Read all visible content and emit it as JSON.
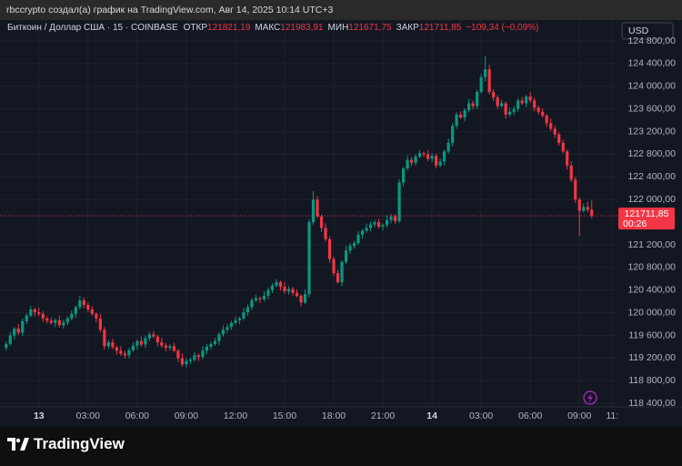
{
  "header": {
    "caption": "rbccrypto создал(а) график на TradingView.com, Авг 14, 2025 10:14 UTC+3"
  },
  "footer": {
    "logo": "TradingView"
  },
  "chart_data": {
    "type": "candlestick",
    "title": "Биткоин / Доллар США · 15 · COINBASE",
    "legend": [
      {
        "label": "ОТКР",
        "value": "121821,19"
      },
      {
        "label": "МАКС",
        "value": "121983,91"
      },
      {
        "label": "МИН",
        "value": "121671,75"
      },
      {
        "label": "ЗАКР",
        "value": "121711,85"
      }
    ],
    "change": "−109,34 (−0,09%)",
    "currency": "USD",
    "price_label": "121711,85",
    "countdown": "00:26",
    "up_color": "#089981",
    "down_color": "#f23645",
    "grid": true,
    "xlim": [
      -1.5,
      149.5
    ],
    "xticks": [
      {
        "value": 8,
        "label": "13"
      },
      {
        "value": 20,
        "label": "03:00"
      },
      {
        "value": 32,
        "label": "06:00"
      },
      {
        "value": 44,
        "label": "09:00"
      },
      {
        "value": 56,
        "label": "12:00"
      },
      {
        "value": 68,
        "label": "15:00"
      },
      {
        "value": 80,
        "label": "18:00"
      },
      {
        "value": 92,
        "label": "21:00"
      },
      {
        "value": 104,
        "label": "14"
      },
      {
        "value": 116,
        "label": "03:00"
      },
      {
        "value": 128,
        "label": "06:00"
      },
      {
        "value": 140,
        "label": "09:00"
      },
      {
        "value": 148,
        "label": "11:"
      }
    ],
    "ylim": [
      118050,
      125170
    ],
    "yticks": [
      {
        "value": 124800,
        "label": "124 800,00"
      },
      {
        "value": 124400,
        "label": "124 400,00"
      },
      {
        "value": 124000,
        "label": "124 000,00"
      },
      {
        "value": 123600,
        "label": "123 600,00"
      },
      {
        "value": 123200,
        "label": "123 200,00"
      },
      {
        "value": 122800,
        "label": "122 800,00"
      },
      {
        "value": 122400,
        "label": "122 400,00"
      },
      {
        "value": 122000,
        "label": "122 000,00"
      },
      {
        "value": 121200,
        "label": "121 200,00"
      },
      {
        "value": 120800,
        "label": "120 800,00"
      },
      {
        "value": 120400,
        "label": "120 400,00"
      },
      {
        "value": 120000,
        "label": "120 000,00"
      },
      {
        "value": 119600,
        "label": "119 600,00"
      },
      {
        "value": 119200,
        "label": "119 200,00"
      },
      {
        "value": 118800,
        "label": "118 800,00"
      },
      {
        "value": 118400,
        "label": "118 400,00"
      }
    ],
    "open": [
      119380,
      119450,
      119600,
      119720,
      119650,
      119850,
      119950,
      120060,
      120010,
      119980,
      119900,
      119860,
      119820,
      119870,
      119780,
      119830,
      119900,
      119980,
      120100,
      120220,
      120140,
      120060,
      119980,
      119900,
      119700,
      119410,
      119480,
      119390,
      119330,
      119280,
      119250,
      119340,
      119420,
      119500,
      119440,
      119550,
      119620,
      119580,
      119480,
      119420,
      119380,
      119410,
      119330,
      119200,
      119090,
      119150,
      119170,
      119250,
      119220,
      119330,
      119400,
      119450,
      119500,
      119620,
      119700,
      119750,
      119820,
      119870,
      119900,
      120010,
      120100,
      120220,
      120260,
      120240,
      120300,
      120400,
      120480,
      120540,
      120460,
      120380,
      120420,
      120350,
      120300,
      120180,
      120330,
      121600,
      122000,
      121700,
      121500,
      121300,
      120950,
      120700,
      120540,
      120900,
      121100,
      121180,
      121230,
      121380,
      121450,
      121500,
      121560,
      121600,
      121520,
      121550,
      121640,
      121700,
      121620,
      122300,
      122550,
      122700,
      122650,
      122760,
      122820,
      122800,
      122720,
      122770,
      122600,
      122670,
      122850,
      123000,
      123300,
      123500,
      123450,
      123580,
      123700,
      123650,
      123900,
      124160,
      124300,
      123900,
      123800,
      123650,
      123700,
      123500,
      123550,
      123600,
      123750,
      123700,
      123820,
      123750,
      123620,
      123550,
      123480,
      123350,
      123250,
      123150,
      123000,
      122850,
      122600,
      122350,
      122000,
      121800,
      121870,
      121821.19
    ],
    "high": [
      119490,
      119660,
      119750,
      119800,
      119900,
      119990,
      120120,
      120090,
      120090,
      120030,
      119940,
      119920,
      119900,
      119950,
      119880,
      119940,
      120040,
      120130,
      120300,
      120270,
      120180,
      120120,
      120010,
      119980,
      119750,
      119520,
      119540,
      119420,
      119410,
      119330,
      119380,
      119480,
      119530,
      119580,
      119600,
      119660,
      119680,
      119610,
      119560,
      119470,
      119450,
      119470,
      119360,
      119280,
      119200,
      119210,
      119310,
      119280,
      119410,
      119450,
      119490,
      119560,
      119650,
      119780,
      119800,
      119860,
      119930,
      119930,
      120090,
      120150,
      120260,
      120320,
      120290,
      120380,
      120450,
      120520,
      120600,
      120570,
      120540,
      120470,
      120460,
      120410,
      120330,
      120410,
      121650,
      122150,
      122060,
      121730,
      121580,
      121350,
      120990,
      120760,
      120930,
      121180,
      121230,
      121270,
      121440,
      121480,
      121580,
      121610,
      121640,
      121660,
      121580,
      121720,
      121750,
      121740,
      122360,
      122580,
      122780,
      122750,
      122800,
      122880,
      122850,
      122880,
      122820,
      122810,
      122730,
      122880,
      123080,
      123350,
      123540,
      123560,
      123610,
      123780,
      123750,
      123940,
      124220,
      124530,
      124380,
      123950,
      123840,
      123760,
      123730,
      123630,
      123650,
      123790,
      123810,
      123850,
      123900,
      123800,
      123660,
      123610,
      123510,
      123430,
      123300,
      123190,
      123060,
      122880,
      122680,
      122400,
      122040,
      121930,
      121960,
      121983.91
    ],
    "low": [
      119330,
      119420,
      119530,
      119610,
      119590,
      119800,
      119920,
      119940,
      119940,
      119840,
      119810,
      119790,
      119750,
      119740,
      119720,
      119780,
      119870,
      119910,
      120060,
      120080,
      120010,
      119950,
      119830,
      119660,
      119350,
      119360,
      119360,
      119260,
      119240,
      119190,
      119200,
      119310,
      119350,
      119400,
      119380,
      119500,
      119550,
      119410,
      119380,
      119320,
      119330,
      119300,
      119130,
      119050,
      119030,
      119100,
      119140,
      119150,
      119180,
      119270,
      119350,
      119420,
      119430,
      119580,
      119640,
      119700,
      119790,
      119800,
      119860,
      119950,
      120050,
      120190,
      120170,
      120200,
      120240,
      120350,
      120450,
      120390,
      120340,
      120320,
      120300,
      120270,
      120110,
      120150,
      120270,
      121550,
      121670,
      121430,
      121260,
      120890,
      120650,
      120510,
      120470,
      120860,
      121040,
      121130,
      121200,
      121310,
      121410,
      121440,
      121510,
      121490,
      121450,
      121510,
      121580,
      121570,
      121590,
      122230,
      122510,
      122590,
      122600,
      122730,
      122750,
      122680,
      122660,
      122550,
      122570,
      122600,
      122810,
      122940,
      123250,
      123420,
      123380,
      123540,
      123590,
      123600,
      123870,
      124090,
      123860,
      123740,
      123600,
      123620,
      123430,
      123460,
      123490,
      123550,
      123670,
      123630,
      123710,
      123560,
      123500,
      123450,
      123280,
      123210,
      123090,
      122950,
      122820,
      122530,
      122310,
      121940,
      121350,
      121770,
      121780,
      121671.75
    ],
    "close": [
      119450,
      119600,
      119720,
      119650,
      119850,
      119950,
      120060,
      120010,
      119980,
      119900,
      119860,
      119820,
      119870,
      119780,
      119830,
      119900,
      119980,
      120100,
      120220,
      120140,
      120060,
      119980,
      119900,
      119700,
      119410,
      119480,
      119390,
      119330,
      119280,
      119250,
      119340,
      119420,
      119500,
      119440,
      119550,
      119620,
      119580,
      119480,
      119420,
      119380,
      119410,
      119330,
      119200,
      119090,
      119150,
      119170,
      119250,
      119220,
      119330,
      119400,
      119450,
      119500,
      119620,
      119700,
      119750,
      119820,
      119870,
      119900,
      120010,
      120100,
      120220,
      120260,
      120240,
      120300,
      120400,
      120480,
      120540,
      120460,
      120380,
      120420,
      120350,
      120300,
      120180,
      120330,
      121600,
      122000,
      121700,
      121500,
      121300,
      120950,
      120700,
      120540,
      120900,
      121100,
      121180,
      121230,
      121380,
      121450,
      121500,
      121560,
      121600,
      121520,
      121550,
      121640,
      121700,
      121620,
      122300,
      122550,
      122700,
      122650,
      122760,
      122820,
      122800,
      122720,
      122770,
      122600,
      122670,
      122850,
      123000,
      123300,
      123500,
      123450,
      123580,
      123700,
      123650,
      123900,
      124160,
      124300,
      123900,
      123800,
      123650,
      123700,
      123500,
      123550,
      123600,
      123750,
      123700,
      123820,
      123750,
      123620,
      123550,
      123480,
      123350,
      123250,
      123150,
      123000,
      122850,
      122600,
      122350,
      122000,
      121800,
      121870,
      121821.19,
      121711.85
    ]
  }
}
